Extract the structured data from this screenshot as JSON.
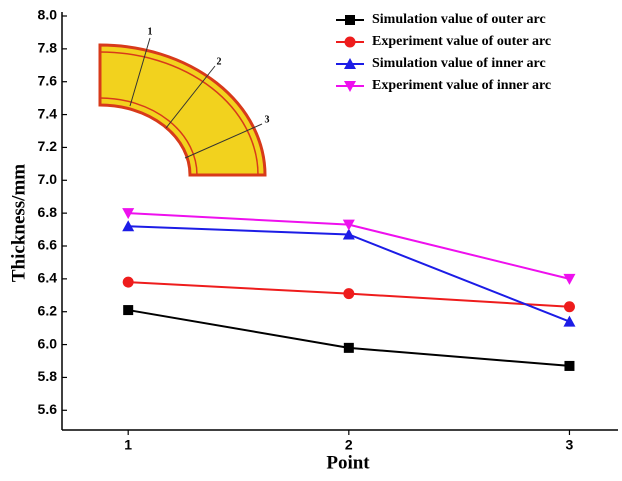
{
  "chart_data": {
    "type": "line",
    "x_label": "Point",
    "y_label": "Thickness/mm",
    "x": [
      1,
      2,
      3
    ],
    "series": [
      {
        "name": "Simulation value of outer arc",
        "color": "#000000",
        "marker": "square",
        "values": [
          6.21,
          5.98,
          5.87
        ]
      },
      {
        "name": "Experiment value of outer arc",
        "color": "#ee1c1c",
        "marker": "circle",
        "values": [
          6.38,
          6.31,
          6.23
        ]
      },
      {
        "name": "Simulation value of inner arc",
        "color": "#1c1ce6",
        "marker": "triangle",
        "values": [
          6.72,
          6.67,
          6.14
        ]
      },
      {
        "name": "Experiment value of inner arc",
        "color": "#ee10ee",
        "marker": "down-triangle",
        "values": [
          6.8,
          6.73,
          6.4
        ]
      }
    ],
    "xlim": [
      0.7,
      3.22
    ],
    "xticks": [
      1,
      2,
      3
    ],
    "ylim": [
      5.48,
      8.0
    ],
    "yticks": [
      5.6,
      5.8,
      {
        "value": 6.0,
        "label": "6.0"
      },
      6.2,
      6.4,
      6.6,
      6.8,
      {
        "value": 7.0,
        "label": "7.0"
      },
      7.2,
      7.4,
      7.6,
      7.8,
      {
        "value": 8.0,
        "label": "8.0"
      }
    ],
    "legend": "upper right",
    "annotations": [
      "1",
      "2",
      "3"
    ]
  }
}
